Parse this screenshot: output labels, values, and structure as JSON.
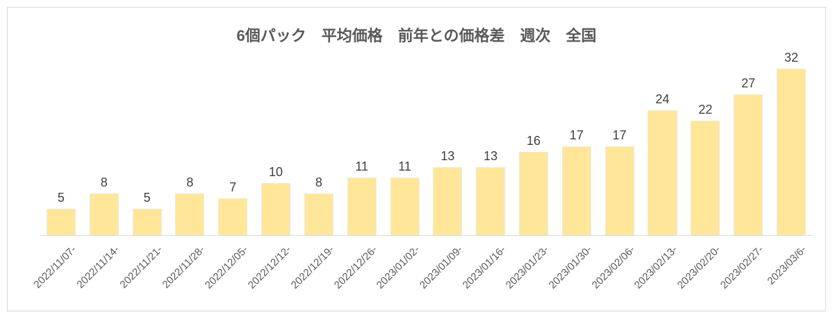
{
  "chart_data": {
    "type": "bar",
    "title": "6個パック　平均価格　前年との価格差　週次　全国",
    "categories": [
      "2022/11/07-",
      "2022/11/14-",
      "2022/11/21-",
      "2022/11/28-",
      "2022/12/05-",
      "2022/12/12-",
      "2022/12/19-",
      "2022/12/26-",
      "2023/01/02-",
      "2023/01/09-",
      "2023/01/16-",
      "2023/01/23-",
      "2023/01/30-",
      "2023/02/06-",
      "2023/02/13-",
      "2023/02/20-",
      "2023/02/27-",
      "2023/03/6-"
    ],
    "values": [
      5,
      8,
      5,
      8,
      7,
      10,
      8,
      11,
      11,
      13,
      13,
      16,
      17,
      17,
      24,
      22,
      27,
      32
    ],
    "xlabel": "",
    "ylabel": "",
    "ylim": [
      0,
      32
    ],
    "grid": false,
    "legend_position": "none",
    "data_labels_shown": true,
    "colors": {
      "bar_fill": "#FFE699",
      "bar_border": "#ECEAE2",
      "title_text": "#595959",
      "value_label_text": "#404040",
      "axis_label_text": "#595959",
      "axis_line": "#D9D9D9",
      "frame_border": "#D9D9D9",
      "background": "#FFFFFF"
    }
  }
}
